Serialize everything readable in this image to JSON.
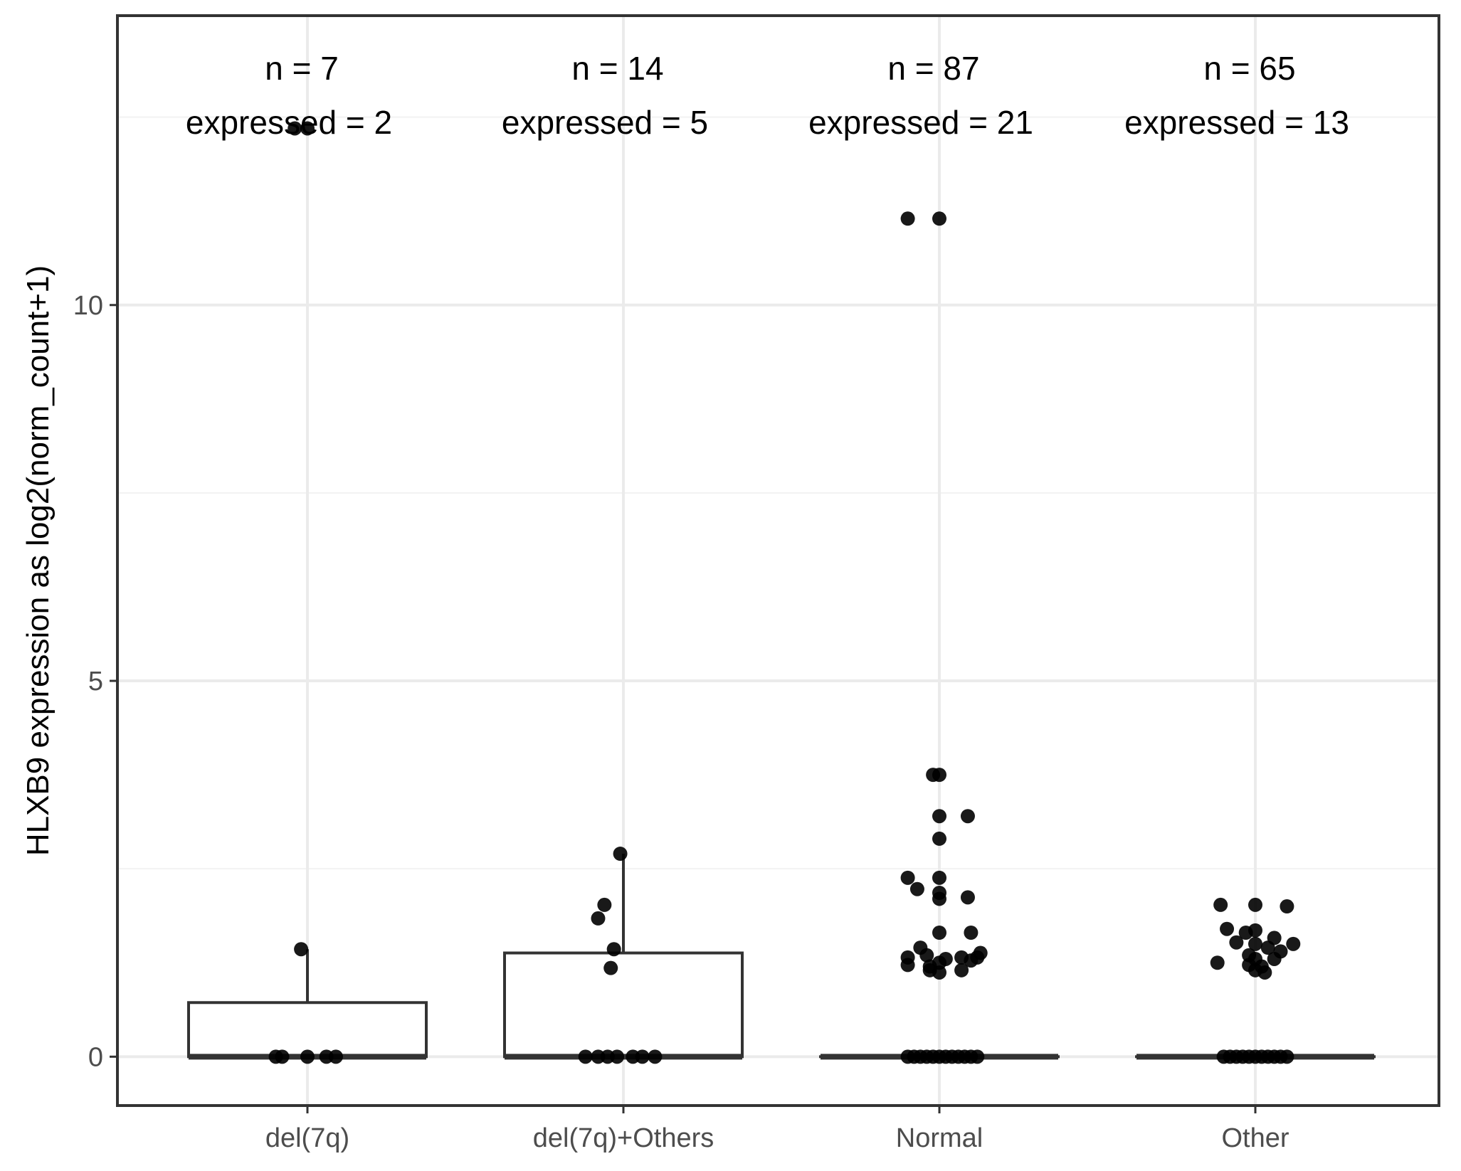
{
  "chart_data": {
    "type": "box",
    "title": "",
    "xlabel": "",
    "ylabel": "HLXB9 expression as log2(norm_count+1)",
    "ylim": [
      -0.65,
      13.85
    ],
    "yticks": [
      0,
      5,
      10
    ],
    "grid": true,
    "categories": [
      "del(7q)",
      "del(7q)+Others",
      "Normal",
      "Other"
    ],
    "annotations": [
      {
        "n": "n = 7",
        "expressed": "expressed = 2"
      },
      {
        "n": "n = 14",
        "expressed": "expressed = 5"
      },
      {
        "n": "n = 87",
        "expressed": "expressed = 21"
      },
      {
        "n": "n = 65",
        "expressed": "expressed = 13"
      }
    ],
    "boxes": [
      {
        "min": 0,
        "q1": 0,
        "median": 0,
        "q3": 0.72,
        "whisker_high": 1.43
      },
      {
        "min": 0,
        "q1": 0,
        "median": 0,
        "q3": 1.38,
        "whisker_high": 2.7
      },
      {
        "min": 0,
        "q1": 0,
        "median": 0,
        "q3": 0,
        "whisker_high": 0
      },
      {
        "min": 0,
        "q1": 0,
        "median": 0,
        "q3": 0,
        "whisker_high": 0
      }
    ],
    "points": [
      [
        {
          "dx": -0.04,
          "y": 12.35
        },
        {
          "dx": 0.0,
          "y": 12.35
        },
        {
          "dx": -0.02,
          "y": 1.43
        },
        {
          "dx": -0.1,
          "y": 0
        },
        {
          "dx": -0.08,
          "y": 0
        },
        {
          "dx": 0.0,
          "y": 0
        },
        {
          "dx": 0.06,
          "y": 0
        },
        {
          "dx": 0.09,
          "y": 0
        }
      ],
      [
        {
          "dx": -0.01,
          "y": 2.7
        },
        {
          "dx": -0.06,
          "y": 2.02
        },
        {
          "dx": -0.08,
          "y": 1.84
        },
        {
          "dx": -0.03,
          "y": 1.43
        },
        {
          "dx": -0.04,
          "y": 1.18
        },
        {
          "dx": -0.12,
          "y": 0
        },
        {
          "dx": -0.08,
          "y": 0
        },
        {
          "dx": -0.05,
          "y": 0
        },
        {
          "dx": -0.02,
          "y": 0
        },
        {
          "dx": 0.03,
          "y": 0
        },
        {
          "dx": 0.06,
          "y": 0
        },
        {
          "dx": 0.1,
          "y": 0
        }
      ],
      [
        {
          "dx": -0.1,
          "y": 11.15
        },
        {
          "dx": 0.0,
          "y": 11.15
        },
        {
          "dx": -0.02,
          "y": 3.75
        },
        {
          "dx": 0.0,
          "y": 3.75
        },
        {
          "dx": 0.0,
          "y": 3.2
        },
        {
          "dx": 0.09,
          "y": 3.2
        },
        {
          "dx": 0.0,
          "y": 2.9
        },
        {
          "dx": -0.1,
          "y": 2.38
        },
        {
          "dx": 0.0,
          "y": 2.38
        },
        {
          "dx": -0.07,
          "y": 2.23
        },
        {
          "dx": 0.0,
          "y": 2.18
        },
        {
          "dx": 0.0,
          "y": 2.1
        },
        {
          "dx": 0.09,
          "y": 2.12
        },
        {
          "dx": 0.0,
          "y": 1.65
        },
        {
          "dx": 0.1,
          "y": 1.65
        },
        {
          "dx": -0.06,
          "y": 1.45
        },
        {
          "dx": 0.13,
          "y": 1.38
        },
        {
          "dx": -0.1,
          "y": 1.32
        },
        {
          "dx": -0.04,
          "y": 1.35
        },
        {
          "dx": 0.02,
          "y": 1.3
        },
        {
          "dx": 0.07,
          "y": 1.32
        },
        {
          "dx": 0.1,
          "y": 1.28
        },
        {
          "dx": 0.12,
          "y": 1.32
        },
        {
          "dx": -0.1,
          "y": 1.22
        },
        {
          "dx": -0.03,
          "y": 1.2
        },
        {
          "dx": 0.0,
          "y": 1.25
        },
        {
          "dx": -0.03,
          "y": 1.15
        },
        {
          "dx": 0.0,
          "y": 1.12
        },
        {
          "dx": 0.07,
          "y": 1.15
        },
        {
          "dx": -0.1,
          "y": 0
        },
        {
          "dx": -0.08,
          "y": 0
        },
        {
          "dx": -0.06,
          "y": 0
        },
        {
          "dx": -0.04,
          "y": 0
        },
        {
          "dx": -0.02,
          "y": 0
        },
        {
          "dx": 0.0,
          "y": 0
        },
        {
          "dx": 0.02,
          "y": 0
        },
        {
          "dx": 0.04,
          "y": 0
        },
        {
          "dx": 0.06,
          "y": 0
        },
        {
          "dx": 0.08,
          "y": 0
        },
        {
          "dx": 0.1,
          "y": 0
        },
        {
          "dx": 0.12,
          "y": 0
        }
      ],
      [
        {
          "dx": -0.11,
          "y": 2.02
        },
        {
          "dx": 0.0,
          "y": 2.02
        },
        {
          "dx": 0.1,
          "y": 2.0
        },
        {
          "dx": -0.09,
          "y": 1.7
        },
        {
          "dx": -0.03,
          "y": 1.65
        },
        {
          "dx": 0.0,
          "y": 1.68
        },
        {
          "dx": 0.06,
          "y": 1.58
        },
        {
          "dx": -0.06,
          "y": 1.52
        },
        {
          "dx": 0.0,
          "y": 1.5
        },
        {
          "dx": 0.04,
          "y": 1.45
        },
        {
          "dx": 0.12,
          "y": 1.5
        },
        {
          "dx": 0.08,
          "y": 1.4
        },
        {
          "dx": -0.02,
          "y": 1.35
        },
        {
          "dx": 0.0,
          "y": 1.3
        },
        {
          "dx": 0.06,
          "y": 1.3
        },
        {
          "dx": -0.12,
          "y": 1.25
        },
        {
          "dx": -0.02,
          "y": 1.22
        },
        {
          "dx": 0.02,
          "y": 1.2
        },
        {
          "dx": 0.0,
          "y": 1.15
        },
        {
          "dx": 0.03,
          "y": 1.12
        },
        {
          "dx": -0.1,
          "y": 0
        },
        {
          "dx": -0.08,
          "y": 0
        },
        {
          "dx": -0.06,
          "y": 0
        },
        {
          "dx": -0.04,
          "y": 0
        },
        {
          "dx": -0.02,
          "y": 0
        },
        {
          "dx": 0.0,
          "y": 0
        },
        {
          "dx": 0.02,
          "y": 0
        },
        {
          "dx": 0.04,
          "y": 0
        },
        {
          "dx": 0.06,
          "y": 0
        },
        {
          "dx": 0.08,
          "y": 0
        },
        {
          "dx": 0.1,
          "y": 0
        }
      ]
    ],
    "colors": {
      "panel_border": "#333333",
      "box_stroke": "#333333",
      "point": "#000000",
      "grid_major": "#ebebeb",
      "grid_minor": "#f2f2f2",
      "tick_text": "#4d4d4d"
    }
  }
}
